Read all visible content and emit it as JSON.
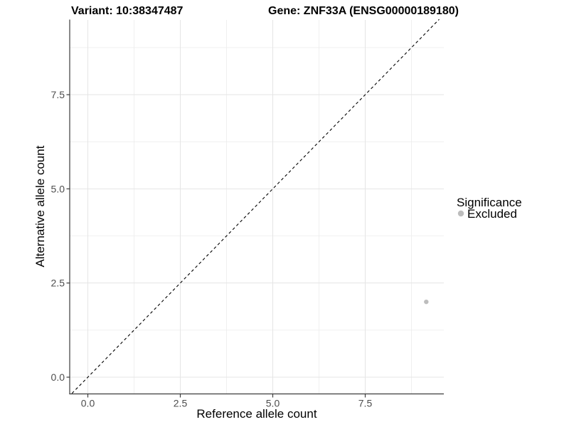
{
  "chart_data": {
    "type": "scatter",
    "title_variant": "Variant: 10:38347487",
    "title_gene": "Gene: ZNF33A (ENSG00000189180)",
    "xlabel": "Reference allele count",
    "ylabel": "Alternative allele count",
    "x_ticks": [
      0.0,
      2.5,
      5.0,
      7.5
    ],
    "y_ticks": [
      0.0,
      2.5,
      5.0,
      7.5
    ],
    "x_tick_labels": [
      "0.0",
      "2.5",
      "5.0",
      "7.5"
    ],
    "y_tick_labels": [
      "0.0",
      "2.5",
      "5.0",
      "7.5"
    ],
    "xlim": [
      -0.45,
      9.6
    ],
    "ylim": [
      -0.43,
      9.5
    ],
    "grid": true,
    "minor_grid": true,
    "series": [
      {
        "name": "Excluded",
        "color": "#bdbdbd",
        "points": [
          {
            "x": 9.15,
            "y": 2.0
          }
        ]
      }
    ],
    "reference_line": {
      "kind": "identity y=x",
      "style": "dashed",
      "color": "#000000"
    },
    "legend": {
      "title": "Significance",
      "position": "right",
      "items": [
        {
          "label": "Excluded",
          "color": "#bdbdbd"
        }
      ]
    },
    "colors": {
      "background": "#ffffff",
      "grid_major": "#e5e5e5",
      "grid_minor": "#ececec",
      "axis_line": "#3c3c3c",
      "tick_label": "#4d4d4d",
      "title_text": "#000000",
      "point": "#bdbdbd"
    }
  }
}
